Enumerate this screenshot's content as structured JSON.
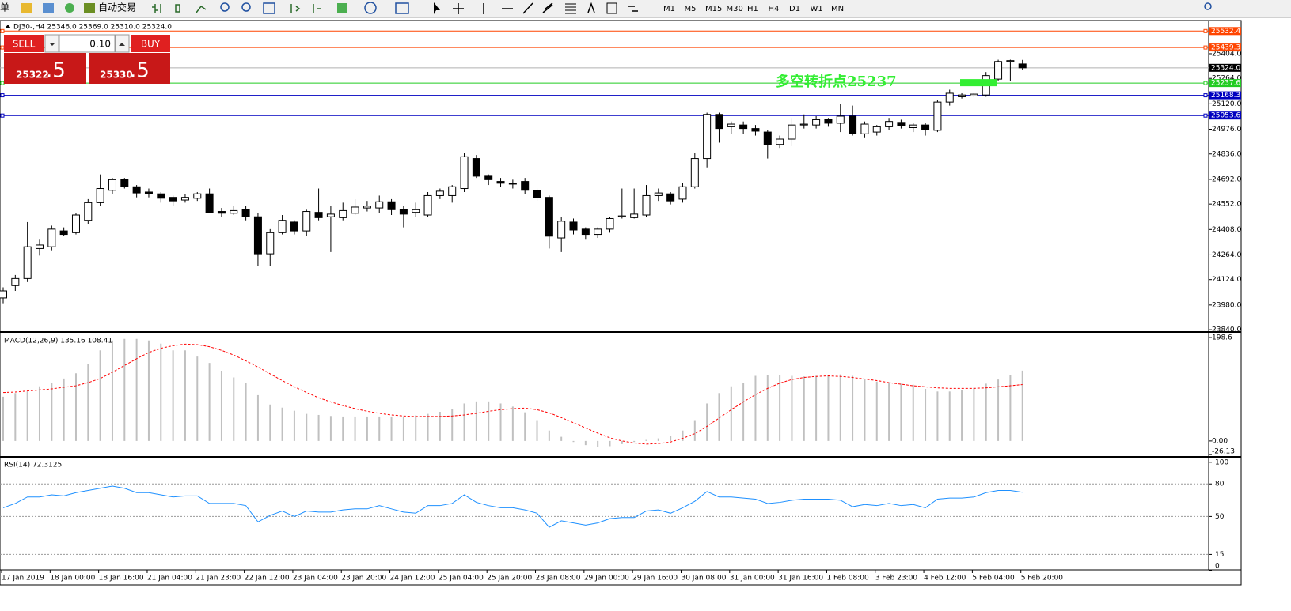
{
  "toolbar": {
    "menu_fragment": "单",
    "auto_trade": "自动交易",
    "timeframes": [
      "M1",
      "M5",
      "M15",
      "M30",
      "H1",
      "H4",
      "D1",
      "W1",
      "MN"
    ]
  },
  "trade_panel": {
    "sell": "SELL",
    "buy": "BUY",
    "lot": "0.10",
    "sell_price_main": "25322",
    "sell_price_frac": ".5",
    "buy_price_main": "25330",
    "buy_price_frac": ".5"
  },
  "chart_data": [
    {
      "type": "candlestick",
      "title": "DJ30-,H4  25346.0 25369.0 25310.0 25324.0",
      "categories": [
        "17 Jan 2019",
        null,
        null,
        null,
        "18 Jan 00:00",
        null,
        null,
        null,
        "18 Jan 16:00",
        null,
        null,
        null,
        "21 Jan 04:00",
        null,
        null,
        null,
        "21 Jan 23:00",
        null,
        null,
        null,
        "22 Jan 12:00",
        null,
        null,
        null,
        "23 Jan 04:00",
        null,
        null,
        null,
        "23 Jan 20:00",
        null,
        null,
        null,
        "24 Jan 12:00",
        null,
        null,
        null,
        "25 Jan 04:00",
        null,
        null,
        null,
        "25 Jan 20:00",
        null,
        null,
        null,
        "28 Jan 08:00",
        null,
        null,
        null,
        "29 Jan 00:00",
        null,
        null,
        null,
        "29 Jan 16:00",
        null,
        null,
        null,
        "30 Jan 08:00",
        null,
        null,
        null,
        "31 Jan 00:00",
        null,
        null,
        null,
        "31 Jan 16:00",
        null,
        null,
        null,
        "1 Feb 08:00",
        null,
        null,
        null,
        "3 Feb 23:00",
        null,
        null,
        null,
        "4 Feb 12:00",
        null,
        null,
        null,
        "5 Feb 04:00",
        null,
        null,
        null,
        "5 Feb 20:00"
      ],
      "open": [
        24020,
        24090,
        24130,
        24300,
        24310,
        24400,
        24390,
        24460,
        24560,
        24630,
        24690,
        24650,
        24620,
        24610,
        24590,
        24575,
        24585,
        24610,
        24510,
        24500,
        24520,
        24480,
        24270,
        24390,
        24450,
        24400,
        24505,
        24480,
        24475,
        24500,
        24530,
        24530,
        24565,
        24520,
        24505,
        24490,
        24600,
        24600,
        24640,
        24810,
        24710,
        24680,
        24670,
        24680,
        24630,
        24590,
        24360,
        24450,
        24410,
        24380,
        24410,
        24480,
        24475,
        24490,
        24600,
        24610,
        24580,
        24650,
        24810,
        25060,
        24990,
        25000,
        24980,
        24960,
        24890,
        24920,
        25000,
        25000,
        25030,
        25010,
        25050,
        24950,
        24960,
        24990,
        25015,
        24985,
        25000,
        24970,
        25130,
        25160,
        25165,
        25170,
        25260,
        25360,
        25346
      ],
      "high": [
        24080,
        24150,
        24450,
        24350,
        24430,
        24420,
        24500,
        24580,
        24720,
        24700,
        24700,
        24660,
        24640,
        24620,
        24600,
        24610,
        24620,
        24640,
        24530,
        24540,
        24540,
        24500,
        24410,
        24490,
        24460,
        24520,
        24640,
        24540,
        24560,
        24580,
        24570,
        24600,
        24580,
        24540,
        24560,
        24620,
        24640,
        24660,
        24840,
        24830,
        24720,
        24700,
        24690,
        24700,
        24640,
        24600,
        24480,
        24470,
        24420,
        24420,
        24480,
        24640,
        24640,
        24660,
        24640,
        24620,
        24670,
        24840,
        25070,
        25070,
        25020,
        25020,
        25000,
        24970,
        24940,
        25040,
        25060,
        25050,
        25040,
        25120,
        25110,
        25020,
        25000,
        25040,
        25030,
        25010,
        25010,
        25140,
        25200,
        25180,
        25180,
        25300,
        25370,
        25370,
        25369
      ],
      "low": [
        23990,
        24060,
        24110,
        24260,
        24290,
        24370,
        24380,
        24440,
        24540,
        24610,
        24640,
        24590,
        24590,
        24560,
        24540,
        24560,
        24570,
        24500,
        24480,
        24490,
        24460,
        24200,
        24200,
        24380,
        24380,
        24370,
        24460,
        24280,
        24460,
        24490,
        24510,
        24500,
        24490,
        24420,
        24480,
        24480,
        24580,
        24560,
        24620,
        24700,
        24660,
        24650,
        24640,
        24610,
        24570,
        24300,
        24280,
        24380,
        24350,
        24360,
        24390,
        24470,
        24470,
        24480,
        24570,
        24550,
        24560,
        24640,
        24760,
        24900,
        24950,
        24950,
        24940,
        24810,
        24870,
        24880,
        24980,
        24980,
        24990,
        24960,
        24940,
        24930,
        24940,
        24970,
        24980,
        24960,
        24940,
        24960,
        25110,
        25150,
        25160,
        25160,
        25250,
        25250,
        25310
      ],
      "close": [
        24060,
        24130,
        24310,
        24320,
        24410,
        24380,
        24490,
        24560,
        24640,
        24690,
        24650,
        24615,
        24610,
        24585,
        24570,
        24590,
        24610,
        24505,
        24500,
        24515,
        24480,
        24270,
        24390,
        24460,
        24400,
        24510,
        24475,
        24495,
        24515,
        24535,
        24540,
        24565,
        24520,
        24495,
        24520,
        24600,
        24625,
        24650,
        24820,
        24710,
        24690,
        24670,
        24665,
        24630,
        24590,
        24370,
        24455,
        24405,
        24380,
        24410,
        24470,
        24485,
        24495,
        24600,
        24615,
        24570,
        24650,
        24810,
        25060,
        24980,
        25005,
        24980,
        24965,
        24890,
        24920,
        25000,
        25005,
        25030,
        25010,
        25050,
        24950,
        25005,
        24990,
        25020,
        24995,
        25000,
        24975,
        25130,
        25180,
        25170,
        25175,
        25280,
        25360,
        25365,
        25324
      ],
      "up_color": "#ffffff",
      "down_color": "#000000",
      "ylim": [
        23836,
        25592
      ],
      "yticks": [
        {
          "value": 25404,
          "label": "25404.0"
        },
        {
          "value": 25264,
          "label": "25264.0"
        },
        {
          "value": 25120,
          "label": "25120.0"
        },
        {
          "value": 24976,
          "label": "24976.0"
        },
        {
          "value": 24836,
          "label": "24836.0"
        },
        {
          "value": 24692,
          "label": "24692.0"
        },
        {
          "value": 24552,
          "label": "24552.0"
        },
        {
          "value": 24408,
          "label": "24408.0"
        },
        {
          "value": 24264,
          "label": "24264.0"
        },
        {
          "value": 24124,
          "label": "24124.0"
        },
        {
          "value": 23980,
          "label": "23980.0"
        },
        {
          "value": 23840,
          "label": "23840.0"
        }
      ],
      "hlines": [
        {
          "value": 25532.4,
          "color": "#ff4500"
        },
        {
          "value": 25439.3,
          "color": "#ff4500"
        },
        {
          "value": 25237.6,
          "color": "#22cc22"
        },
        {
          "value": 25168.3,
          "color": "#0000c0"
        },
        {
          "value": 25053.6,
          "color": "#0000c0"
        }
      ],
      "current_price": {
        "value": 25324,
        "label": "25324.0"
      },
      "annotation": {
        "text": "多空转折点25237",
        "color": "#33ee33"
      }
    },
    {
      "type": "macd",
      "title": "MACD(12,26,9) 135.16 108.41",
      "series": [
        {
          "color": "#c0c0c0",
          "values": [
            85,
            92,
            95,
            105,
            112,
            120,
            130,
            147,
            174,
            193,
            196,
            196,
            193,
            187,
            174,
            174,
            162,
            150,
            135,
            122,
            112,
            88,
            70,
            64,
            58,
            52,
            50,
            48,
            47,
            47,
            47,
            47,
            47,
            47,
            49,
            52,
            56,
            62,
            72,
            76,
            76,
            72,
            66,
            55,
            40,
            20,
            8,
            -2,
            -8,
            -12,
            -10,
            -6,
            -2,
            2,
            5,
            10,
            20,
            40,
            72,
            92,
            105,
            112,
            125,
            127,
            127,
            125,
            124,
            125,
            127,
            128,
            125,
            118,
            114,
            113,
            110,
            108,
            100,
            95,
            95,
            97,
            102,
            110,
            118,
            126,
            135.16
          ]
        },
        {
          "color": "#ff0000",
          "style": "dashed",
          "values": [
            93,
            94,
            96,
            98,
            100,
            103,
            106,
            112,
            120,
            132,
            145,
            158,
            170,
            178,
            183,
            186,
            185,
            181,
            174,
            165,
            154,
            142,
            129,
            116,
            104,
            93,
            83,
            75,
            68,
            62,
            57,
            53,
            50,
            48,
            47,
            47,
            47,
            48,
            50,
            53,
            57,
            60,
            62,
            63,
            60,
            54,
            45,
            35,
            25,
            15,
            6,
            0,
            -4,
            -6,
            -5,
            -2,
            5,
            14,
            28,
            44,
            60,
            75,
            89,
            101,
            111,
            118,
            122,
            124,
            125,
            124,
            122,
            119,
            116,
            112,
            109,
            106,
            104,
            102,
            101,
            101,
            101,
            102,
            104,
            106,
            108.41
          ]
        }
      ],
      "ylim": [
        -27.5,
        207.8
      ],
      "yticks": [
        198.6,
        {
          "value": 0,
          "label": "0.00"
        },
        -26.13
      ]
    },
    {
      "type": "line",
      "title": "RSI(14) 72.3125",
      "color": "#1e90ff",
      "values": [
        58,
        62,
        68,
        68,
        70,
        69,
        72,
        74,
        76,
        78,
        76,
        72,
        72,
        70,
        68,
        69,
        69,
        62,
        62,
        62,
        60,
        45,
        51,
        55,
        50,
        55,
        54,
        54,
        56,
        57,
        57,
        60,
        57,
        54,
        53,
        60,
        60,
        62,
        70,
        63,
        60,
        58,
        58,
        56,
        53,
        40,
        46,
        44,
        42,
        44,
        48,
        49,
        49,
        55,
        56,
        53,
        58,
        64,
        73,
        68,
        68,
        67,
        66,
        62,
        63,
        65,
        66,
        66,
        66,
        65,
        59,
        61,
        60,
        62,
        60,
        61,
        58,
        66,
        67,
        67,
        68,
        72,
        74,
        74,
        72.3125
      ],
      "ylim": [
        0,
        103.5
      ],
      "yticks": [
        100,
        80,
        50,
        15,
        0
      ],
      "levels": [
        80,
        50,
        15
      ]
    }
  ]
}
